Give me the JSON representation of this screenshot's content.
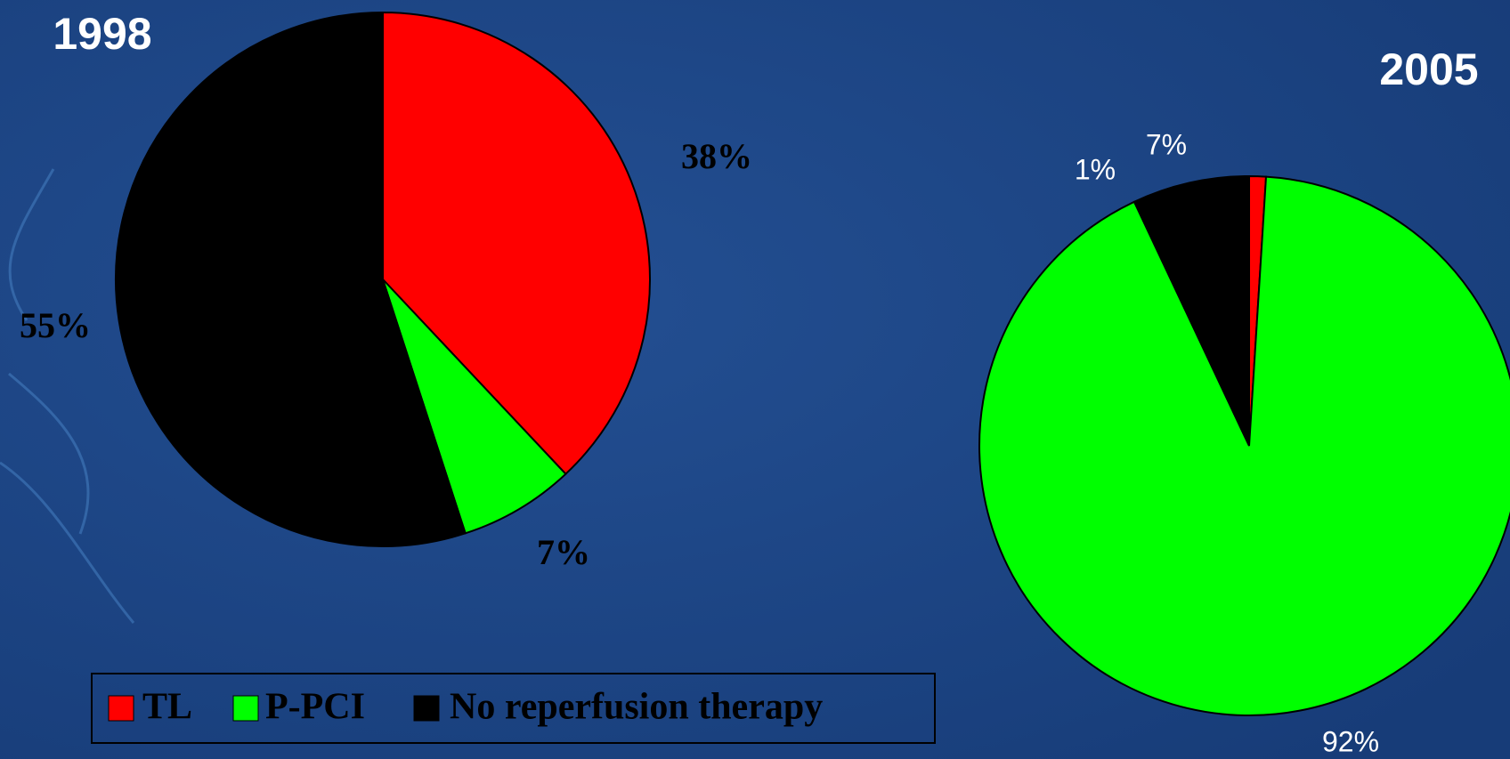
{
  "chart_data": [
    {
      "type": "pie",
      "title": "1998",
      "categories": [
        "TL",
        "P-PCI",
        "No reperfusion therapy"
      ],
      "values": [
        38,
        7,
        55
      ],
      "value_labels": [
        "38%",
        "7%",
        "55%"
      ],
      "colors": [
        "#ff0000",
        "#00ff00",
        "#000000"
      ]
    },
    {
      "type": "pie",
      "title": "2005",
      "categories": [
        "TL",
        "P-PCI",
        "No reperfusion therapy"
      ],
      "values": [
        1,
        92,
        7
      ],
      "value_labels": [
        "1%",
        "92%",
        "7%"
      ],
      "colors": [
        "#ff0000",
        "#00ff00",
        "#000000"
      ]
    }
  ]
}
